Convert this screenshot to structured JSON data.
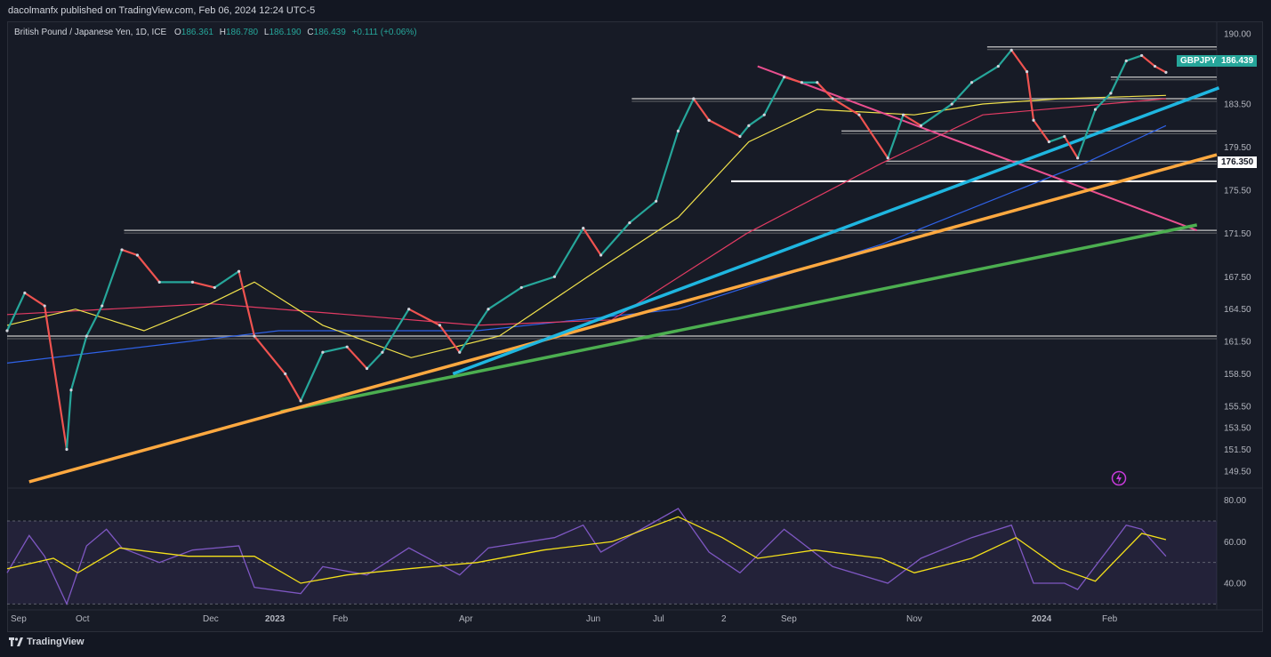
{
  "publisher_line": "dacolmanfx published on TradingView.com, Feb 06, 2024 12:24 UTC-5",
  "legend": {
    "title": "British Pound / Japanese Yen, 1D, ICE",
    "o_label": "O",
    "o_value": "186.361",
    "h_label": "H",
    "h_value": "186.780",
    "l_label": "L",
    "l_value": "186.190",
    "c_label": "C",
    "c_value": "186.439",
    "change": "+0.111 (+0.06%)"
  },
  "symbol_tag": "GBPJPY",
  "last_price_tag": "186.439",
  "level_tag": "176.350",
  "footer_brand": "TradingView",
  "colors": {
    "up": "#26a69a",
    "down": "#ef5350",
    "bg": "#171b26",
    "sma_fast": "#f2e34c",
    "sma_mid": "#e23b63",
    "sma_slow": "#2f62e8",
    "trend_cyan": "#1fb6e0",
    "trend_orange": "#ffa940",
    "trend_green": "#4caf50",
    "trend_pink": "#e94f8f",
    "rsi": "#7e57c2",
    "rsi_ma": "#f5e11a"
  },
  "chart_data": [
    {
      "type": "candlestick",
      "title": "British Pound / Japanese Yen, 1D, ICE",
      "x_ticks": [
        "Sep",
        "Oct",
        "Dec",
        "2023",
        "Feb",
        "Apr",
        "Jun",
        "Jul",
        "2",
        "Sep",
        "Nov",
        "2024",
        "Feb"
      ],
      "y_ticks": [
        149.5,
        151.5,
        153.5,
        155.5,
        158.5,
        161.5,
        164.5,
        167.5,
        171.5,
        175.5,
        179.5,
        183.5,
        187.5,
        190.0
      ],
      "ylim": [
        148.0,
        191.0
      ],
      "last_close": 186.439,
      "price_path": [
        {
          "date": "2022-08-30",
          "close": 162.5
        },
        {
          "date": "2022-09-07",
          "close": 166.0
        },
        {
          "date": "2022-09-16",
          "close": 164.8
        },
        {
          "date": "2022-09-26",
          "close": 151.5
        },
        {
          "date": "2022-09-28",
          "close": 157.0
        },
        {
          "date": "2022-10-05",
          "close": 162.0
        },
        {
          "date": "2022-10-12",
          "close": 164.8
        },
        {
          "date": "2022-10-21",
          "close": 170.0
        },
        {
          "date": "2022-10-28",
          "close": 169.5
        },
        {
          "date": "2022-11-07",
          "close": 167.0
        },
        {
          "date": "2022-11-22",
          "close": 167.0
        },
        {
          "date": "2022-12-02",
          "close": 166.5
        },
        {
          "date": "2022-12-13",
          "close": 168.0
        },
        {
          "date": "2022-12-20",
          "close": 162.0
        },
        {
          "date": "2023-01-03",
          "close": 158.5
        },
        {
          "date": "2023-01-10",
          "close": 156.0
        },
        {
          "date": "2023-01-20",
          "close": 160.5
        },
        {
          "date": "2023-01-31",
          "close": 161.0
        },
        {
          "date": "2023-02-09",
          "close": 159.0
        },
        {
          "date": "2023-02-16",
          "close": 160.5
        },
        {
          "date": "2023-02-28",
          "close": 164.5
        },
        {
          "date": "2023-03-14",
          "close": 163.0
        },
        {
          "date": "2023-03-23",
          "close": 160.5
        },
        {
          "date": "2023-04-05",
          "close": 164.5
        },
        {
          "date": "2023-04-20",
          "close": 166.5
        },
        {
          "date": "2023-05-05",
          "close": 167.5
        },
        {
          "date": "2023-05-18",
          "close": 172.0
        },
        {
          "date": "2023-05-26",
          "close": 169.5
        },
        {
          "date": "2023-06-08",
          "close": 172.5
        },
        {
          "date": "2023-06-20",
          "close": 174.5
        },
        {
          "date": "2023-06-30",
          "close": 181.0
        },
        {
          "date": "2023-07-07",
          "close": 184.0
        },
        {
          "date": "2023-07-14",
          "close": 182.0
        },
        {
          "date": "2023-07-28",
          "close": 180.5
        },
        {
          "date": "2023-08-01",
          "close": 181.5
        },
        {
          "date": "2023-08-08",
          "close": 182.5
        },
        {
          "date": "2023-08-17",
          "close": 186.0
        },
        {
          "date": "2023-08-25",
          "close": 185.5
        },
        {
          "date": "2023-09-01",
          "close": 185.5
        },
        {
          "date": "2023-09-08",
          "close": 184.0
        },
        {
          "date": "2023-09-20",
          "close": 182.5
        },
        {
          "date": "2023-10-03",
          "close": 178.5
        },
        {
          "date": "2023-10-10",
          "close": 182.5
        },
        {
          "date": "2023-10-18",
          "close": 181.5
        },
        {
          "date": "2023-11-01",
          "close": 183.5
        },
        {
          "date": "2023-11-10",
          "close": 185.5
        },
        {
          "date": "2023-11-22",
          "close": 187.0
        },
        {
          "date": "2023-11-28",
          "close": 188.5
        },
        {
          "date": "2023-12-05",
          "close": 186.5
        },
        {
          "date": "2023-12-08",
          "close": 182.0
        },
        {
          "date": "2023-12-15",
          "close": 180.0
        },
        {
          "date": "2023-12-22",
          "close": 180.5
        },
        {
          "date": "2023-12-28",
          "close": 178.5
        },
        {
          "date": "2024-01-05",
          "close": 183.0
        },
        {
          "date": "2024-01-12",
          "close": 184.5
        },
        {
          "date": "2024-01-19",
          "close": 187.5
        },
        {
          "date": "2024-01-26",
          "close": 188.0
        },
        {
          "date": "2024-02-01",
          "close": 187.0
        },
        {
          "date": "2024-02-06",
          "close": 186.439
        }
      ],
      "horizontal_levels": [
        162.0,
        171.8,
        176.35,
        178.2,
        181.0,
        184.0,
        188.8,
        186.0
      ],
      "moving_averages": {
        "yellow": [
          {
            "date": "2022-08-30",
            "v": 163.0
          },
          {
            "date": "2022-09-30",
            "v": 164.5
          },
          {
            "date": "2022-10-31",
            "v": 162.5
          },
          {
            "date": "2022-11-30",
            "v": 165.0
          },
          {
            "date": "2022-12-20",
            "v": 167.0
          },
          {
            "date": "2023-01-20",
            "v": 163.0
          },
          {
            "date": "2023-03-01",
            "v": 160.0
          },
          {
            "date": "2023-04-10",
            "v": 162.0
          },
          {
            "date": "2023-05-20",
            "v": 167.5
          },
          {
            "date": "2023-06-30",
            "v": 173.0
          },
          {
            "date": "2023-08-01",
            "v": 180.0
          },
          {
            "date": "2023-09-01",
            "v": 183.0
          },
          {
            "date": "2023-10-15",
            "v": 182.5
          },
          {
            "date": "2023-11-15",
            "v": 183.5
          },
          {
            "date": "2023-12-20",
            "v": 184.0
          },
          {
            "date": "2024-02-06",
            "v": 184.3
          }
        ],
        "pink": [
          {
            "date": "2022-08-30",
            "v": 164.0
          },
          {
            "date": "2022-11-30",
            "v": 165.0
          },
          {
            "date": "2023-01-31",
            "v": 164.0
          },
          {
            "date": "2023-03-31",
            "v": 163.0
          },
          {
            "date": "2023-05-31",
            "v": 163.5
          },
          {
            "date": "2023-07-31",
            "v": 171.5
          },
          {
            "date": "2023-09-30",
            "v": 178.0
          },
          {
            "date": "2023-11-15",
            "v": 182.5
          },
          {
            "date": "2024-02-06",
            "v": 184.0
          }
        ],
        "blue": [
          {
            "date": "2022-08-30",
            "v": 159.5
          },
          {
            "date": "2022-12-31",
            "v": 162.5
          },
          {
            "date": "2023-03-31",
            "v": 162.5
          },
          {
            "date": "2023-06-30",
            "v": 164.5
          },
          {
            "date": "2023-09-30",
            "v": 170.5
          },
          {
            "date": "2023-12-31",
            "v": 178.0
          },
          {
            "date": "2024-02-06",
            "v": 181.5
          }
        ]
      },
      "trendlines": {
        "orange": [
          {
            "date": "2022-09-09",
            "v": 148.5
          },
          {
            "date": "2024-02-29",
            "v": 178.8
          }
        ],
        "green": [
          {
            "date": "2023-01-01",
            "v": 155.0
          },
          {
            "date": "2024-02-20",
            "v": 172.3
          }
        ],
        "cyan": [
          {
            "date": "2023-03-20",
            "v": 158.5
          },
          {
            "date": "2024-03-01",
            "v": 185.0
          }
        ],
        "pink": [
          {
            "date": "2023-08-05",
            "v": 187.0
          },
          {
            "date": "2024-02-20",
            "v": 171.8
          }
        ]
      }
    },
    {
      "type": "line",
      "title": "",
      "ylim": [
        28,
        82
      ],
      "y_ticks": [
        40.0,
        60.0,
        80.0
      ],
      "band": [
        30,
        70
      ],
      "midline": 50,
      "series": [
        {
          "values": [
            {
              "date": "2022-08-30",
              "v": 45
            },
            {
              "date": "2022-09-09",
              "v": 63
            },
            {
              "date": "2022-09-16",
              "v": 53
            },
            {
              "date": "2022-09-26",
              "v": 30
            },
            {
              "date": "2022-10-05",
              "v": 58
            },
            {
              "date": "2022-10-14",
              "v": 66
            },
            {
              "date": "2022-10-21",
              "v": 57
            },
            {
              "date": "2022-11-07",
              "v": 50
            },
            {
              "date": "2022-11-22",
              "v": 56
            },
            {
              "date": "2022-12-13",
              "v": 58
            },
            {
              "date": "2022-12-20",
              "v": 38
            },
            {
              "date": "2023-01-10",
              "v": 35
            },
            {
              "date": "2023-01-20",
              "v": 48
            },
            {
              "date": "2023-02-09",
              "v": 44
            },
            {
              "date": "2023-02-28",
              "v": 57
            },
            {
              "date": "2023-03-23",
              "v": 44
            },
            {
              "date": "2023-04-05",
              "v": 57
            },
            {
              "date": "2023-05-05",
              "v": 62
            },
            {
              "date": "2023-05-18",
              "v": 68
            },
            {
              "date": "2023-05-26",
              "v": 55
            },
            {
              "date": "2023-06-20",
              "v": 70
            },
            {
              "date": "2023-06-30",
              "v": 76
            },
            {
              "date": "2023-07-14",
              "v": 55
            },
            {
              "date": "2023-07-28",
              "v": 45
            },
            {
              "date": "2023-08-17",
              "v": 66
            },
            {
              "date": "2023-09-08",
              "v": 48
            },
            {
              "date": "2023-10-03",
              "v": 40
            },
            {
              "date": "2023-10-18",
              "v": 52
            },
            {
              "date": "2023-11-10",
              "v": 62
            },
            {
              "date": "2023-11-28",
              "v": 68
            },
            {
              "date": "2023-12-08",
              "v": 40
            },
            {
              "date": "2023-12-22",
              "v": 40
            },
            {
              "date": "2023-12-28",
              "v": 37
            },
            {
              "date": "2024-01-12",
              "v": 58
            },
            {
              "date": "2024-01-19",
              "v": 68
            },
            {
              "date": "2024-01-26",
              "v": 66
            },
            {
              "date": "2024-02-06",
              "v": 53
            }
          ]
        },
        {
          "values": [
            {
              "date": "2022-08-30",
              "v": 47
            },
            {
              "date": "2022-09-20",
              "v": 52
            },
            {
              "date": "2022-10-01",
              "v": 45
            },
            {
              "date": "2022-10-20",
              "v": 57
            },
            {
              "date": "2022-11-20",
              "v": 53
            },
            {
              "date": "2022-12-20",
              "v": 53
            },
            {
              "date": "2023-01-10",
              "v": 40
            },
            {
              "date": "2023-01-31",
              "v": 44
            },
            {
              "date": "2023-02-28",
              "v": 47
            },
            {
              "date": "2023-03-31",
              "v": 50
            },
            {
              "date": "2023-04-30",
              "v": 56
            },
            {
              "date": "2023-05-31",
              "v": 60
            },
            {
              "date": "2023-06-30",
              "v": 72
            },
            {
              "date": "2023-07-20",
              "v": 62
            },
            {
              "date": "2023-08-05",
              "v": 52
            },
            {
              "date": "2023-08-31",
              "v": 56
            },
            {
              "date": "2023-09-30",
              "v": 52
            },
            {
              "date": "2023-10-15",
              "v": 45
            },
            {
              "date": "2023-11-10",
              "v": 52
            },
            {
              "date": "2023-11-30",
              "v": 62
            },
            {
              "date": "2023-12-20",
              "v": 47
            },
            {
              "date": "2024-01-05",
              "v": 41
            },
            {
              "date": "2024-01-26",
              "v": 64
            },
            {
              "date": "2024-02-06",
              "v": 61
            }
          ]
        }
      ]
    }
  ]
}
